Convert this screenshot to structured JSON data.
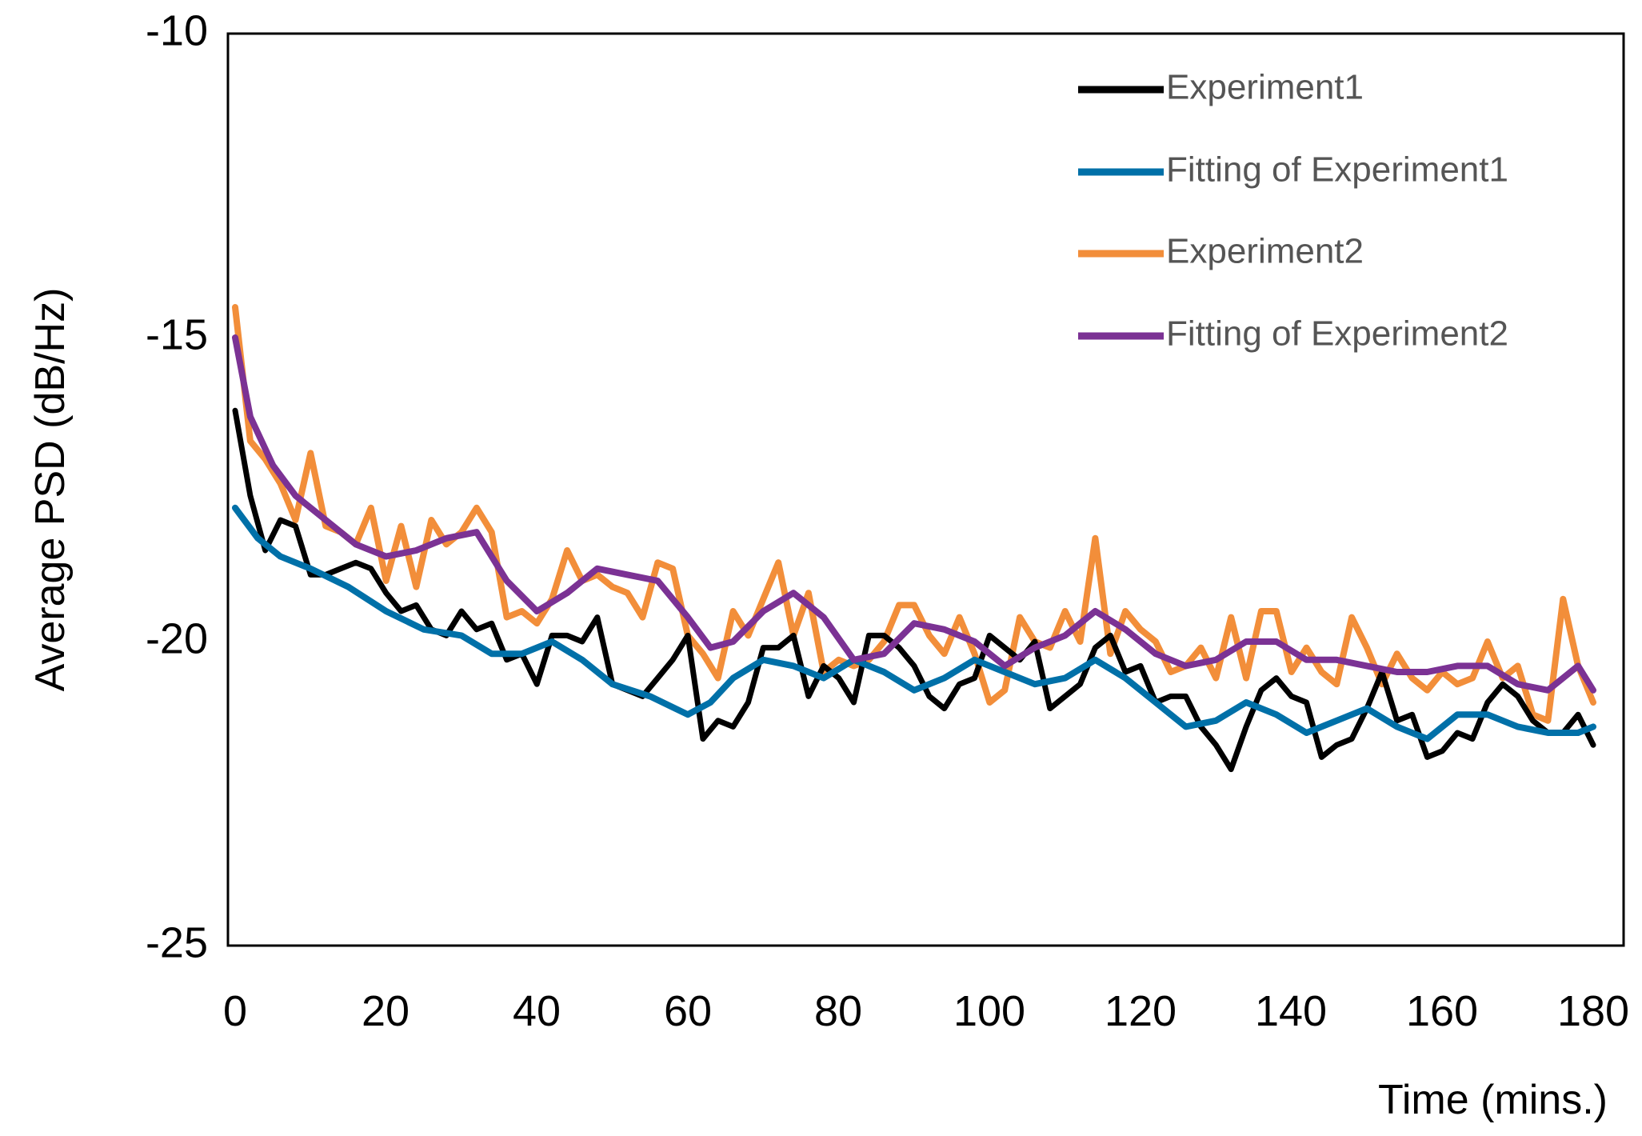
{
  "chart_data": {
    "type": "line",
    "title": "",
    "xlabel": "Time (mins.)",
    "ylabel": "Average PSD (dB/Hz)",
    "xlim": [
      0,
      180
    ],
    "ylim": [
      -25,
      -10
    ],
    "xticks": [
      0,
      20,
      40,
      60,
      80,
      100,
      120,
      140,
      160,
      180
    ],
    "yticks": [
      -10,
      -15,
      -20,
      -25
    ],
    "grid": false,
    "legend_position": "top-right",
    "series": [
      {
        "name": "Experiment1",
        "color": "#000000",
        "x": [
          0,
          2,
          4,
          6,
          8,
          10,
          12,
          14,
          16,
          18,
          20,
          22,
          24,
          26,
          28,
          30,
          32,
          34,
          36,
          38,
          40,
          42,
          44,
          46,
          48,
          50,
          52,
          54,
          56,
          58,
          60,
          62,
          64,
          66,
          68,
          70,
          72,
          74,
          76,
          78,
          80,
          82,
          84,
          86,
          88,
          90,
          92,
          94,
          96,
          98,
          100,
          102,
          104,
          106,
          108,
          110,
          112,
          114,
          116,
          118,
          120,
          122,
          124,
          126,
          128,
          130,
          132,
          134,
          136,
          138,
          140,
          142,
          144,
          146,
          148,
          150,
          152,
          154,
          156,
          158,
          160,
          162,
          164,
          166,
          168,
          170,
          172,
          174,
          176,
          178,
          180
        ],
        "values": [
          -16.2,
          -17.6,
          -18.5,
          -18.0,
          -18.1,
          -18.9,
          -18.9,
          -18.8,
          -18.7,
          -18.8,
          -19.2,
          -19.5,
          -19.4,
          -19.8,
          -19.9,
          -19.5,
          -19.8,
          -19.7,
          -20.3,
          -20.2,
          -20.7,
          -19.9,
          -19.9,
          -20.0,
          -19.6,
          -20.7,
          -20.8,
          -20.9,
          -20.6,
          -20.3,
          -19.9,
          -21.6,
          -21.3,
          -21.4,
          -21.0,
          -20.1,
          -20.1,
          -19.9,
          -20.9,
          -20.4,
          -20.6,
          -21.0,
          -19.9,
          -19.9,
          -20.1,
          -20.4,
          -20.9,
          -21.1,
          -20.7,
          -20.6,
          -19.9,
          -20.1,
          -20.3,
          -20.0,
          -21.1,
          -20.9,
          -20.7,
          -20.1,
          -19.9,
          -20.5,
          -20.4,
          -21.0,
          -20.9,
          -20.9,
          -21.4,
          -21.7,
          -22.1,
          -21.4,
          -20.8,
          -20.6,
          -20.9,
          -21.0,
          -21.9,
          -21.7,
          -21.6,
          -21.1,
          -20.5,
          -21.3,
          -21.2,
          -21.9,
          -21.8,
          -21.5,
          -21.6,
          -21.0,
          -20.7,
          -20.9,
          -21.3,
          -21.5,
          -21.5,
          -21.2,
          -21.7
        ]
      },
      {
        "name": "Fitting of Experiment1",
        "color": "#0070a8",
        "x": [
          0,
          3,
          6,
          10,
          15,
          20,
          25,
          30,
          34,
          38,
          42,
          46,
          50,
          55,
          60,
          63,
          66,
          70,
          74,
          78,
          82,
          86,
          90,
          94,
          98,
          102,
          106,
          110,
          114,
          118,
          122,
          126,
          130,
          134,
          138,
          142,
          146,
          150,
          154,
          158,
          162,
          166,
          170,
          174,
          178,
          180
        ],
        "values": [
          -17.8,
          -18.3,
          -18.6,
          -18.8,
          -19.1,
          -19.5,
          -19.8,
          -19.9,
          -20.2,
          -20.2,
          -20.0,
          -20.3,
          -20.7,
          -20.9,
          -21.2,
          -21.0,
          -20.6,
          -20.3,
          -20.4,
          -20.6,
          -20.3,
          -20.5,
          -20.8,
          -20.6,
          -20.3,
          -20.5,
          -20.7,
          -20.6,
          -20.3,
          -20.6,
          -21.0,
          -21.4,
          -21.3,
          -21.0,
          -21.2,
          -21.5,
          -21.3,
          -21.1,
          -21.4,
          -21.6,
          -21.2,
          -21.2,
          -21.4,
          -21.5,
          -21.5,
          -21.4
        ]
      },
      {
        "name": "Experiment2",
        "color": "#f28e3a",
        "x": [
          0,
          2,
          4,
          6,
          8,
          10,
          12,
          14,
          16,
          18,
          20,
          22,
          24,
          26,
          28,
          30,
          32,
          34,
          36,
          38,
          40,
          42,
          44,
          46,
          48,
          50,
          52,
          54,
          56,
          58,
          60,
          62,
          64,
          66,
          68,
          70,
          72,
          74,
          76,
          78,
          80,
          82,
          84,
          86,
          88,
          90,
          92,
          94,
          96,
          98,
          100,
          102,
          104,
          106,
          108,
          110,
          112,
          114,
          116,
          118,
          120,
          122,
          124,
          126,
          128,
          130,
          132,
          134,
          136,
          138,
          140,
          142,
          144,
          146,
          148,
          150,
          152,
          154,
          156,
          158,
          160,
          162,
          164,
          166,
          168,
          170,
          172,
          174,
          176,
          178,
          180
        ],
        "values": [
          -14.5,
          -16.7,
          -17.0,
          -17.4,
          -18.0,
          -16.9,
          -18.1,
          -18.2,
          -18.4,
          -17.8,
          -19.0,
          -18.1,
          -19.1,
          -18.0,
          -18.4,
          -18.2,
          -17.8,
          -18.2,
          -19.6,
          -19.5,
          -19.7,
          -19.3,
          -18.5,
          -19.0,
          -18.9,
          -19.1,
          -19.2,
          -19.6,
          -18.7,
          -18.8,
          -19.9,
          -20.2,
          -20.6,
          -19.5,
          -19.9,
          -19.3,
          -18.7,
          -19.9,
          -19.2,
          -20.5,
          -20.3,
          -20.4,
          -20.3,
          -20.0,
          -19.4,
          -19.4,
          -19.9,
          -20.2,
          -19.6,
          -20.2,
          -21.0,
          -20.8,
          -19.6,
          -20.0,
          -20.1,
          -19.5,
          -20.0,
          -18.3,
          -20.2,
          -19.5,
          -19.8,
          -20.0,
          -20.5,
          -20.4,
          -20.1,
          -20.6,
          -19.6,
          -20.6,
          -19.5,
          -19.5,
          -20.5,
          -20.1,
          -20.5,
          -20.7,
          -19.6,
          -20.1,
          -20.7,
          -20.2,
          -20.6,
          -20.8,
          -20.5,
          -20.7,
          -20.6,
          -20.0,
          -20.6,
          -20.4,
          -21.2,
          -21.3,
          -19.3,
          -20.4,
          -21.0
        ]
      },
      {
        "name": "Fitting of Experiment2",
        "color": "#7b3294",
        "x": [
          0,
          2,
          5,
          8,
          12,
          16,
          20,
          24,
          28,
          32,
          36,
          40,
          44,
          48,
          52,
          56,
          60,
          63,
          66,
          70,
          74,
          78,
          82,
          86,
          90,
          94,
          98,
          102,
          106,
          110,
          114,
          118,
          122,
          126,
          130,
          134,
          138,
          142,
          146,
          150,
          154,
          158,
          162,
          166,
          170,
          174,
          178,
          180
        ],
        "values": [
          -15.0,
          -16.3,
          -17.1,
          -17.6,
          -18.0,
          -18.4,
          -18.6,
          -18.5,
          -18.3,
          -18.2,
          -19.0,
          -19.5,
          -19.2,
          -18.8,
          -18.9,
          -19.0,
          -19.6,
          -20.1,
          -20.0,
          -19.5,
          -19.2,
          -19.6,
          -20.3,
          -20.2,
          -19.7,
          -19.8,
          -20.0,
          -20.4,
          -20.1,
          -19.9,
          -19.5,
          -19.8,
          -20.2,
          -20.4,
          -20.3,
          -20.0,
          -20.0,
          -20.3,
          -20.3,
          -20.4,
          -20.5,
          -20.5,
          -20.4,
          -20.4,
          -20.7,
          -20.8,
          -20.4,
          -20.8
        ]
      }
    ]
  }
}
